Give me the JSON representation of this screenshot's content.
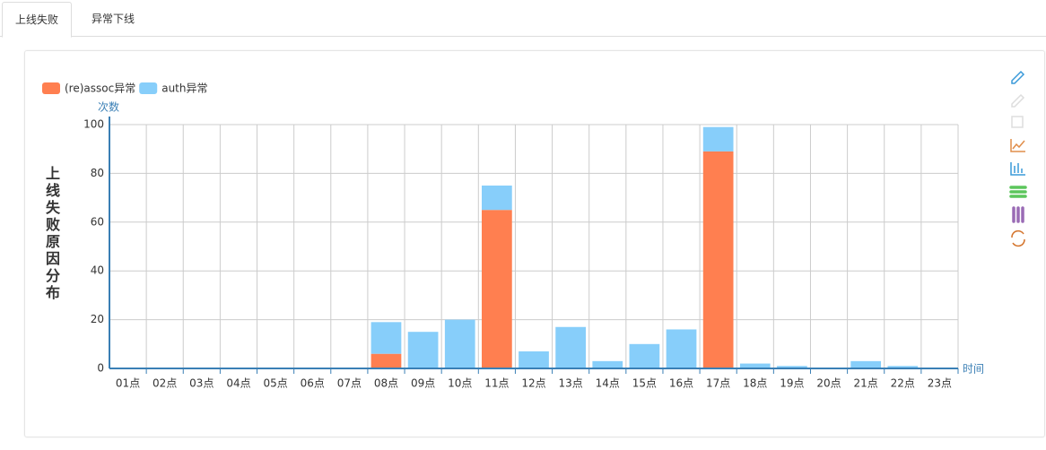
{
  "tabs": [
    "上线失败",
    "异常下线"
  ],
  "chart_data": {
    "type": "bar",
    "stacked": true,
    "title": "上线失败原因分布",
    "x_label": "时间",
    "y_label": "次数",
    "categories": [
      "01点",
      "02点",
      "03点",
      "04点",
      "05点",
      "06点",
      "07点",
      "08点",
      "09点",
      "10点",
      "11点",
      "12点",
      "13点",
      "14点",
      "15点",
      "16点",
      "17点",
      "18点",
      "19点",
      "20点",
      "21点",
      "22点",
      "23点"
    ],
    "series": [
      {
        "name": "(re)assoc异常",
        "color": "#ff7f50",
        "values": [
          0,
          0,
          0,
          0,
          0,
          0,
          0,
          6,
          0,
          0,
          65,
          0,
          0,
          0,
          0,
          0,
          89,
          0,
          0,
          0,
          0,
          0,
          0
        ]
      },
      {
        "name": "auth异常",
        "color": "#87cefa",
        "values": [
          0,
          0,
          0,
          0,
          0,
          0,
          0,
          13,
          15,
          20,
          10,
          7,
          17,
          3,
          10,
          16,
          10,
          2,
          1,
          0,
          3,
          1,
          0
        ]
      }
    ],
    "ylim": [
      0,
      100
    ],
    "yticks": [
      0,
      20,
      40,
      60,
      80,
      100
    ],
    "grid": true,
    "legend": "top-left"
  }
}
